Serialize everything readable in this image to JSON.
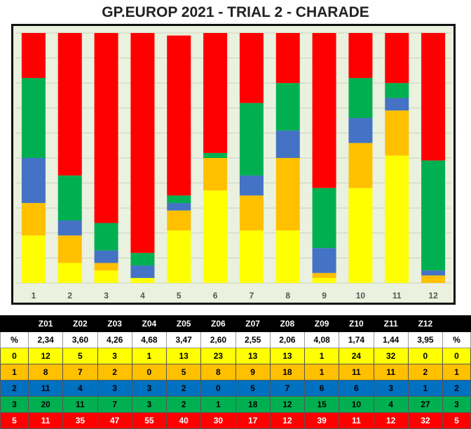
{
  "title": "GP.EUROP 2021 - TRIAL 2  - CHARADE",
  "chart_data": {
    "type": "bar",
    "stacked": true,
    "categories": [
      "1",
      "2",
      "3",
      "4",
      "5",
      "6",
      "7",
      "8",
      "9",
      "10",
      "11",
      "12"
    ],
    "ylim": [
      0,
      100
    ],
    "grid": true,
    "series": [
      {
        "name": "0",
        "color": "#ffff00",
        "values": [
          19,
          8,
          5,
          2,
          21,
          37,
          21,
          21,
          2,
          38,
          51,
          0
        ]
      },
      {
        "name": "1",
        "color": "#ffc000",
        "values": [
          13,
          11,
          3,
          0,
          8,
          13,
          14,
          29,
          2,
          18,
          18,
          3
        ]
      },
      {
        "name": "2",
        "color": "#4472c4",
        "values": [
          18,
          6,
          5,
          5,
          3,
          0,
          8,
          11,
          10,
          10,
          5,
          2
        ]
      },
      {
        "name": "3",
        "color": "#00b050",
        "values": [
          32,
          18,
          11,
          5,
          3,
          2,
          29,
          19,
          24,
          16,
          6,
          44
        ]
      },
      {
        "name": "5",
        "color": "#ff0000",
        "values": [
          18,
          57,
          76,
          88,
          64,
          48,
          28,
          20,
          62,
          18,
          20,
          51
        ]
      }
    ]
  },
  "table": {
    "header": [
      "",
      "Z01",
      "Z02",
      "Z03",
      "Z04",
      "Z05",
      "Z06",
      "Z07",
      "Z08",
      "Z09",
      "Z10",
      "Z11",
      "Z12",
      ""
    ],
    "percent_row": [
      "%",
      "2,34",
      "3,60",
      "4,26",
      "4,68",
      "3,47",
      "2,60",
      "2,55",
      "2,06",
      "4,08",
      "1,74",
      "1,44",
      "3,95",
      "%"
    ],
    "rows": [
      {
        "label": "0",
        "color": "#ffff00",
        "text": "#000000",
        "values": [
          "12",
          "5",
          "3",
          "1",
          "13",
          "23",
          "13",
          "13",
          "1",
          "24",
          "32",
          "0"
        ]
      },
      {
        "label": "1",
        "color": "#ffc000",
        "text": "#000000",
        "values": [
          "8",
          "7",
          "2",
          "0",
          "5",
          "8",
          "9",
          "18",
          "1",
          "11",
          "11",
          "2"
        ]
      },
      {
        "label": "2",
        "color": "#0070c0",
        "text": "#000000",
        "values": [
          "11",
          "4",
          "3",
          "3",
          "2",
          "0",
          "5",
          "7",
          "6",
          "6",
          "3",
          "1"
        ]
      },
      {
        "label": "3",
        "color": "#00b050",
        "text": "#000000",
        "values": [
          "20",
          "11",
          "7",
          "3",
          "2",
          "1",
          "18",
          "12",
          "15",
          "10",
          "4",
          "27"
        ]
      },
      {
        "label": "5",
        "color": "#ff0000",
        "text": "#ffffff",
        "values": [
          "11",
          "35",
          "47",
          "55",
          "40",
          "30",
          "17",
          "12",
          "39",
          "11",
          "12",
          "32"
        ]
      }
    ]
  }
}
